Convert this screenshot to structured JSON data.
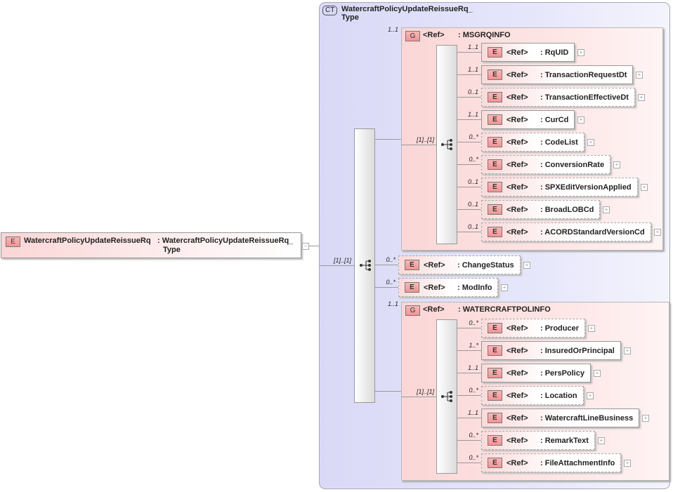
{
  "root": {
    "badge": "E",
    "name": "WatercraftPolicyUpdateReissueRq",
    "type_line1": ": WatercraftPolicyUpdateReissueRq_",
    "type_line2": "Type",
    "collapse": "−"
  },
  "complex_type": {
    "badge": "CT",
    "title_line1": "WatercraftPolicyUpdateReissueRq_",
    "title_line2": "Type"
  },
  "outer_sequence": {
    "cardinality": "[1]..[1]"
  },
  "ref_label": "<Ref>",
  "groups": [
    {
      "badge": "G",
      "name": ": MSGRQINFO",
      "cardinality": "1..1",
      "sequence_cardinality": "[1]..[1]",
      "children": [
        {
          "name": ": RqUID",
          "cardinality": "1..1",
          "optional": false
        },
        {
          "name": ": TransactionRequestDt",
          "cardinality": "1..1",
          "optional": false
        },
        {
          "name": ": TransactionEffectiveDt",
          "cardinality": "0..1",
          "optional": true
        },
        {
          "name": ": CurCd",
          "cardinality": "1..1",
          "optional": false
        },
        {
          "name": ": CodeList",
          "cardinality": "0..*",
          "optional": true
        },
        {
          "name": ": ConversionRate",
          "cardinality": "0..*",
          "optional": true
        },
        {
          "name": ": SPXEditVersionApplied",
          "cardinality": "0..1",
          "optional": true
        },
        {
          "name": ": BroadLOBCd",
          "cardinality": "0..1",
          "optional": true
        },
        {
          "name": ": ACORDStandardVersionCd",
          "cardinality": "0..1",
          "optional": true
        }
      ]
    },
    {
      "badge": "G",
      "name": ": WATERCRAFTPOLINFO",
      "cardinality": "1..1",
      "sequence_cardinality": "[1]..[1]",
      "children": [
        {
          "name": ": Producer",
          "cardinality": "0..*",
          "optional": true
        },
        {
          "name": ": InsuredOrPrincipal",
          "cardinality": "1..*",
          "optional": false
        },
        {
          "name": ": PersPolicy",
          "cardinality": "1..1",
          "optional": false
        },
        {
          "name": ": Location",
          "cardinality": "0..*",
          "optional": true
        },
        {
          "name": ": WatercraftLineBusiness",
          "cardinality": "1..1",
          "optional": false
        },
        {
          "name": ": RemarkText",
          "cardinality": "0..*",
          "optional": true
        },
        {
          "name": ": FileAttachmentInfo",
          "cardinality": "0..*",
          "optional": true
        }
      ]
    }
  ],
  "direct_elements": [
    {
      "name": ": ChangeStatus",
      "cardinality": "0..*",
      "optional": true
    },
    {
      "name": ": ModInfo",
      "cardinality": "0..*",
      "optional": true
    }
  ],
  "element_badge": "E",
  "expand": "+"
}
